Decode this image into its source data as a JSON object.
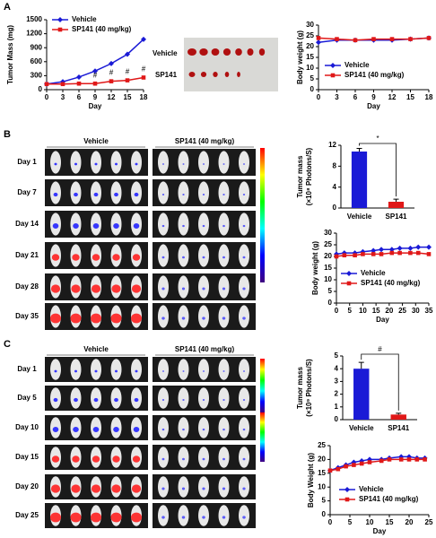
{
  "figure": {
    "panel_labels": [
      "A",
      "B",
      "C"
    ],
    "photo": {
      "labels": [
        "Vehicle",
        "SP141"
      ]
    },
    "imaging": [
      {
        "headers": [
          "Vehicle",
          "SP141 (40 mg/kg)"
        ],
        "days": [
          "Day 1",
          "Day 7",
          "Day 14",
          "Day 21",
          "Day 28",
          "Day 35"
        ]
      },
      {
        "headers": [
          "Vehicle",
          "SP141 (40 mg/kg)"
        ],
        "days": [
          "Day 1",
          "Day 5",
          "Day 10",
          "Day 15",
          "Day 20",
          "Day 25"
        ]
      }
    ]
  },
  "chart_data": [
    {
      "type": "line",
      "ylabel": "Tumor Mass (mg)",
      "xlabel": "Day",
      "x": [
        0,
        3,
        6,
        9,
        12,
        15,
        18
      ],
      "xlim": [
        0,
        18
      ],
      "xticks": [
        0,
        3,
        6,
        9,
        12,
        15,
        18
      ],
      "ylim": [
        0,
        1500
      ],
      "yticks": [
        0,
        300,
        600,
        900,
        1200,
        1500
      ],
      "annotation": "#",
      "annotation_x": [
        9,
        12,
        15,
        18
      ],
      "series": [
        {
          "name": "Vehicle",
          "color": "#1a1ad6",
          "marker": "diamond",
          "values": [
            120,
            170,
            270,
            400,
            560,
            760,
            1080
          ]
        },
        {
          "name": "SP141 (40 mg/kg)",
          "color": "#e01818",
          "marker": "square",
          "values": [
            120,
            120,
            130,
            130,
            180,
            200,
            260
          ]
        }
      ]
    },
    {
      "type": "line",
      "ylabel": "Body weight (g)",
      "xlabel": "Day",
      "x": [
        0,
        3,
        6,
        9,
        12,
        15,
        18
      ],
      "xlim": [
        0,
        18
      ],
      "xticks": [
        0,
        3,
        6,
        9,
        12,
        15,
        18
      ],
      "ylim": [
        0,
        30
      ],
      "yticks": [
        0,
        5,
        10,
        15,
        20,
        25,
        30
      ],
      "series": [
        {
          "name": "Vehicle",
          "color": "#1a1ad6",
          "marker": "diamond",
          "values": [
            22,
            23,
            23,
            23,
            23,
            23.5,
            24
          ]
        },
        {
          "name": "SP141 (40 mg/kg)",
          "color": "#e01818",
          "marker": "square",
          "values": [
            24,
            23.5,
            23,
            23.5,
            23.5,
            23.5,
            24
          ]
        }
      ]
    },
    {
      "type": "bar",
      "ylabel": [
        "Tumor mass",
        "(×10⁸ Photons/S)"
      ],
      "categories": [
        "Vehicle",
        "SP141"
      ],
      "values": [
        10.8,
        1.2
      ],
      "errors": [
        0.6,
        0.5
      ],
      "colors": [
        "#1a1ad6",
        "#e01818"
      ],
      "ylim": [
        0,
        12
      ],
      "yticks": [
        0,
        4,
        8,
        12
      ],
      "annotation": "*"
    },
    {
      "type": "line",
      "ylabel": "Body weight (g)",
      "xlabel": "Day",
      "x": [
        0,
        3,
        7,
        10,
        14,
        17,
        21,
        24,
        28,
        31,
        35
      ],
      "xlim": [
        0,
        35
      ],
      "xticks": [
        0,
        5,
        10,
        15,
        20,
        25,
        30,
        35
      ],
      "ylim": [
        0,
        30
      ],
      "yticks": [
        0,
        5,
        10,
        15,
        20,
        25,
        30
      ],
      "series": [
        {
          "name": "Vehicle",
          "color": "#1a1ad6",
          "marker": "diamond",
          "values": [
            21,
            21.5,
            21.5,
            22,
            22.5,
            23,
            23,
            23.5,
            23.5,
            24,
            24
          ]
        },
        {
          "name": "SP141 (40 mg/kg)",
          "color": "#e01818",
          "marker": "square",
          "values": [
            20,
            20.5,
            20.5,
            21,
            21,
            21,
            21.5,
            21.5,
            21.5,
            21.5,
            21
          ]
        }
      ]
    },
    {
      "type": "bar",
      "ylabel": [
        "Tumor mass",
        "(×10⁹ Photons/S)"
      ],
      "categories": [
        "Vehicle",
        "SP141"
      ],
      "values": [
        4.0,
        0.4
      ],
      "errors": [
        0.5,
        0.1
      ],
      "colors": [
        "#1a1ad6",
        "#e01818"
      ],
      "ylim": [
        0,
        5
      ],
      "yticks": [
        0,
        1,
        2,
        3,
        4,
        5
      ],
      "annotation": "#"
    },
    {
      "type": "line",
      "ylabel": "Body Weight (g)",
      "xlabel": "Day",
      "x": [
        0,
        2,
        4,
        6,
        8,
        10,
        13,
        15,
        18,
        20,
        22,
        24
      ],
      "xlim": [
        0,
        25
      ],
      "xticks": [
        0,
        5,
        10,
        15,
        20,
        25
      ],
      "ylim": [
        0,
        25
      ],
      "yticks": [
        0,
        5,
        10,
        15,
        20,
        25
      ],
      "series": [
        {
          "name": "Vehicle",
          "color": "#1a1ad6",
          "marker": "diamond",
          "values": [
            16,
            17,
            18,
            19,
            19.5,
            20,
            20,
            20.5,
            21,
            21,
            20.5,
            20.5
          ]
        },
        {
          "name": "SP141 (40 mg/kg)",
          "color": "#e01818",
          "marker": "square",
          "values": [
            16,
            16.5,
            17.5,
            18,
            18.5,
            19,
            19.5,
            20,
            20,
            20,
            20,
            20
          ]
        }
      ]
    }
  ]
}
